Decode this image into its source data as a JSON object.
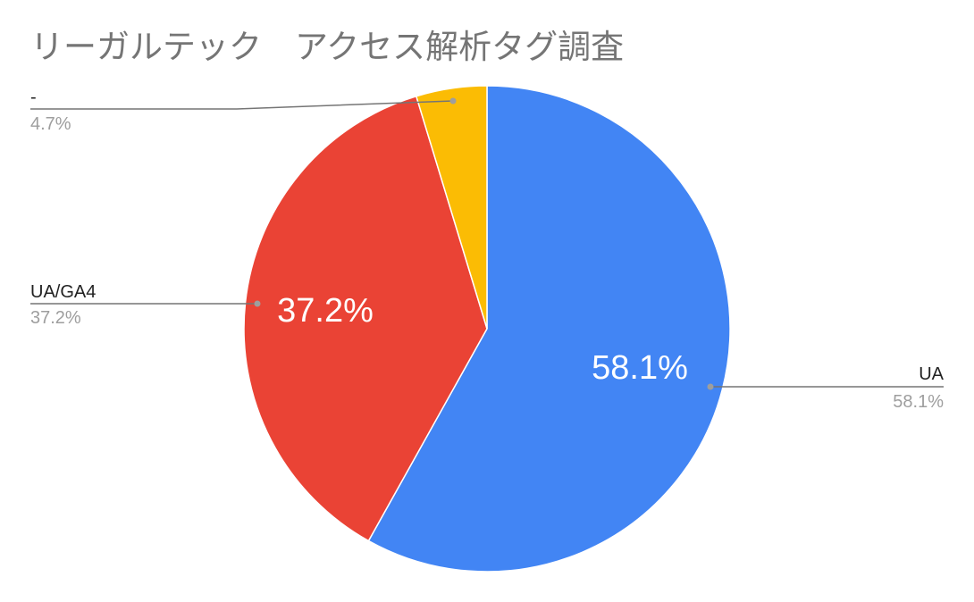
{
  "chart_data": {
    "type": "pie",
    "title": "リーガルテック　アクセス解析タグ調査",
    "start_angle": "top, clockwise",
    "slices": [
      {
        "label": "UA",
        "value": 58.1,
        "pct_label": "58.1%",
        "color": "#4285f4"
      },
      {
        "label": "UA/GA4",
        "value": 37.2,
        "pct_label": "37.2%",
        "color": "#ea4335"
      },
      {
        "label": "-",
        "value": 4.7,
        "pct_label": "4.7%",
        "color": "#fbbc04"
      }
    ]
  }
}
